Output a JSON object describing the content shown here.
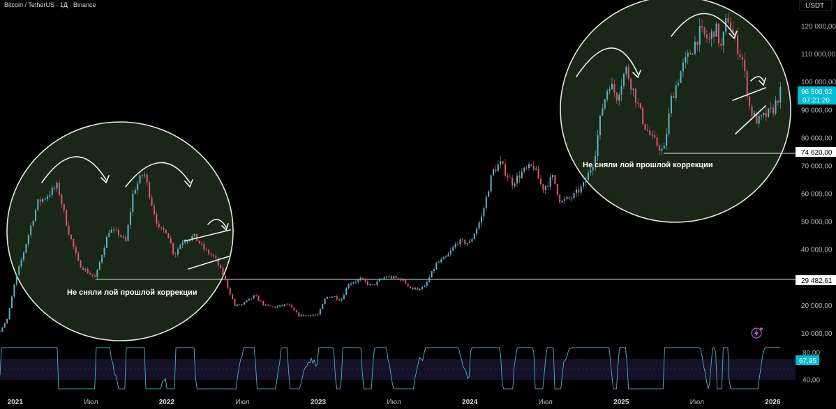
{
  "header": {
    "title": "Bitcoin / TetherUS · 1Д · Binance",
    "currency": "USDT"
  },
  "colors": {
    "background": "#000000",
    "candle_up": "#5fb2c9",
    "candle_down": "#e0536e",
    "rsi_line": "#4fb3c7",
    "circle_fill": "#1c2a18",
    "circle_stroke": "#e8e8e0",
    "price_tag": "#00bcd4"
  },
  "annotations": {
    "left_note": "Не сняли лой прошлой коррекции",
    "right_note": "Не сняли лой прошлой коррекции"
  },
  "price_tags": {
    "current_price": "96 500,62",
    "countdown": "07:21:20",
    "level_high": "74 620,00",
    "level_low": "29 482,61",
    "rsi_value": "67,95"
  },
  "chart_data": [
    {
      "type": "candlestick",
      "title": "",
      "y_ticks": [
        "120 000,00",
        "110 000,00",
        "100 000,00",
        "90 000,00",
        "80 000,00",
        "70 000,00",
        "60 000,00",
        "50 000,00",
        "40 000,00",
        "30 000,00",
        "20 000,00",
        "10 000,00"
      ],
      "y_tick_values": [
        120000,
        110000,
        100000,
        90000,
        80000,
        70000,
        60000,
        50000,
        40000,
        30000,
        20000,
        10000
      ],
      "ylim": [
        8000,
        127000
      ],
      "x_ticks": [
        "2021",
        "Июл",
        "2022",
        "Июл",
        "2023",
        "Июл",
        "2024",
        "Июл",
        "2025",
        "Июл",
        "2026"
      ],
      "x_tick_times": [
        2021.0,
        2021.5,
        2022.0,
        2022.5,
        2023.0,
        2023.5,
        2024.0,
        2024.5,
        2025.0,
        2025.5,
        2026.0
      ],
      "xlim": [
        2020.9,
        2026.15
      ],
      "horizontal_levels": [
        29482.61,
        74620.0
      ],
      "price_path": [
        [
          2020.9,
          11000
        ],
        [
          2020.95,
          15500
        ],
        [
          2021.0,
          29000
        ],
        [
          2021.05,
          38000
        ],
        [
          2021.1,
          48000
        ],
        [
          2021.15,
          57000
        ],
        [
          2021.2,
          59000
        ],
        [
          2021.28,
          63000
        ],
        [
          2021.35,
          47000
        ],
        [
          2021.42,
          35000
        ],
        [
          2021.48,
          32000
        ],
        [
          2021.53,
          30000
        ],
        [
          2021.58,
          40000
        ],
        [
          2021.62,
          47000
        ],
        [
          2021.68,
          46000
        ],
        [
          2021.73,
          43000
        ],
        [
          2021.78,
          61000
        ],
        [
          2021.85,
          68000
        ],
        [
          2021.9,
          57000
        ],
        [
          2021.95,
          47000
        ],
        [
          2022.0,
          47000
        ],
        [
          2022.05,
          38000
        ],
        [
          2022.1,
          43000
        ],
        [
          2022.18,
          45000
        ],
        [
          2022.25,
          40000
        ],
        [
          2022.32,
          37000
        ],
        [
          2022.38,
          30000
        ],
        [
          2022.45,
          20000
        ],
        [
          2022.5,
          20500
        ],
        [
          2022.58,
          23500
        ],
        [
          2022.65,
          20000
        ],
        [
          2022.72,
          19500
        ],
        [
          2022.8,
          20500
        ],
        [
          2022.87,
          16500
        ],
        [
          2022.95,
          16800
        ],
        [
          2023.0,
          16800
        ],
        [
          2023.05,
          23000
        ],
        [
          2023.1,
          23500
        ],
        [
          2023.15,
          22000
        ],
        [
          2023.2,
          28000
        ],
        [
          2023.28,
          29500
        ],
        [
          2023.35,
          27000
        ],
        [
          2023.45,
          30500
        ],
        [
          2023.55,
          29500
        ],
        [
          2023.62,
          26000
        ],
        [
          2023.7,
          26500
        ],
        [
          2023.78,
          35000
        ],
        [
          2023.85,
          37500
        ],
        [
          2023.92,
          43000
        ],
        [
          2024.0,
          42500
        ],
        [
          2024.08,
          52000
        ],
        [
          2024.15,
          68000
        ],
        [
          2024.2,
          71000
        ],
        [
          2024.28,
          64000
        ],
        [
          2024.35,
          68000
        ],
        [
          2024.42,
          70000
        ],
        [
          2024.48,
          62000
        ],
        [
          2024.55,
          66000
        ],
        [
          2024.6,
          57000
        ],
        [
          2024.68,
          59000
        ],
        [
          2024.75,
          63000
        ],
        [
          2024.82,
          72000
        ],
        [
          2024.87,
          90000
        ],
        [
          2024.92,
          100000
        ],
        [
          2024.97,
          95000
        ],
        [
          2025.03,
          105000
        ],
        [
          2025.08,
          97000
        ],
        [
          2025.15,
          85000
        ],
        [
          2025.2,
          80000
        ],
        [
          2025.28,
          75000
        ],
        [
          2025.33,
          94000
        ],
        [
          2025.4,
          105000
        ],
        [
          2025.45,
          110000
        ],
        [
          2025.52,
          118000
        ],
        [
          2025.58,
          115000
        ],
        [
          2025.62,
          120000
        ],
        [
          2025.66,
          112000
        ],
        [
          2025.7,
          124000
        ],
        [
          2025.75,
          115000
        ],
        [
          2025.8,
          108000
        ],
        [
          2025.85,
          90000
        ],
        [
          2025.9,
          86000
        ],
        [
          2025.95,
          88000
        ],
        [
          2026.0,
          90000
        ],
        [
          2026.05,
          96500
        ]
      ]
    },
    {
      "type": "line",
      "title": "",
      "y_ticks": [
        "80,00",
        "40,00"
      ],
      "y_tick_values": [
        80,
        40
      ],
      "ylim": [
        25,
        92
      ],
      "band": [
        30,
        70
      ]
    }
  ]
}
